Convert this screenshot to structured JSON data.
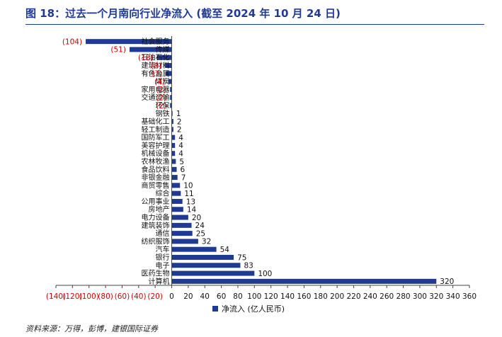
{
  "title": "图 18：过去一个月南向行业净流入 (截至 2024 年 10 月 24 日)",
  "source": "资料来源：万得，彭博，建银国际证券",
  "colors": {
    "bar": "#1f3a93",
    "negative_text": "#d00000",
    "positive_text": "#111111",
    "axis": "#444444"
  },
  "chart_data": {
    "type": "bar",
    "orientation": "horizontal",
    "categories": [
      "社会服务",
      "传媒",
      "石油石化",
      "建筑材料",
      "有色金属",
      "煤炭",
      "家用电器",
      "交通运输",
      "环保",
      "钢铁",
      "基础化工",
      "轻工制造",
      "国防军工",
      "美容护理",
      "机械设备",
      "农林牧渔",
      "食品饮料",
      "非银金融",
      "商贸零售",
      "综合",
      "公用事业",
      "房地产",
      "电力设备",
      "建筑装饰",
      "通信",
      "纺织服饰",
      "汽车",
      "银行",
      "电子",
      "医药生物",
      "计算机"
    ],
    "values": [
      -104,
      -51,
      -18,
      -8,
      -7,
      -4,
      -2,
      -2,
      -2,
      1,
      2,
      2,
      4,
      4,
      4,
      5,
      6,
      7,
      10,
      11,
      13,
      14,
      20,
      24,
      25,
      32,
      54,
      75,
      83,
      100,
      320
    ],
    "value_labels": [
      "(104)",
      "(51)",
      "(18)",
      "(8)",
      "(7)",
      "(4)",
      "(2)",
      "(2)",
      "(2)",
      "1",
      "2",
      "2",
      "4",
      "4",
      "4",
      "5",
      "6",
      "7",
      "10",
      "11",
      "13",
      "14",
      "20",
      "24",
      "25",
      "32",
      "54",
      "75",
      "83",
      "100",
      "320"
    ],
    "xlim": [
      -140,
      360
    ],
    "ticks": [
      -140,
      -120,
      -100,
      -80,
      -60,
      -40,
      -20,
      0,
      20,
      40,
      60,
      80,
      100,
      120,
      140,
      160,
      180,
      200,
      220,
      240,
      260,
      280,
      300,
      320,
      340,
      360
    ],
    "tick_labels": [
      "(140)",
      "(120)",
      "(100)",
      "(80)",
      "(60)",
      "(40)",
      "(20)",
      "0",
      "20",
      "40",
      "60",
      "80",
      "100",
      "120",
      "140",
      "160",
      "180",
      "200",
      "220",
      "240",
      "260",
      "280",
      "300",
      "320",
      "340",
      "360"
    ],
    "legend": {
      "label": "净流入 (亿人民币)",
      "position": "bottom"
    }
  }
}
